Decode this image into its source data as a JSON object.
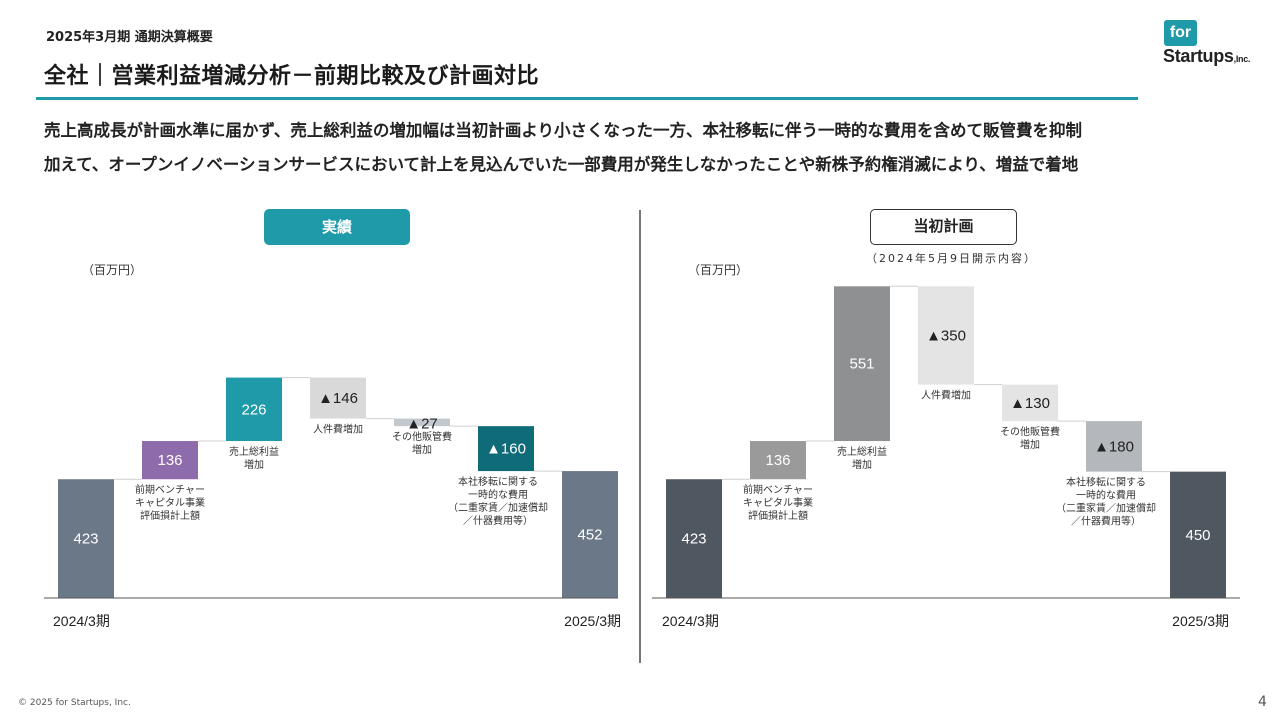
{
  "header": {
    "breadcrumb": "2025年3月期 通期決算概要",
    "title": "全社｜営業利益増減分析－前期比較及び計画対比"
  },
  "logo": {
    "top": "for",
    "main": "Startups",
    "suffix": ",Inc."
  },
  "summary": {
    "line1": "売上高成長が計画水準に届かず、売上総利益の増加幅は当初計画より小さくなった一方、本社移転に伴う一時的な費用を含めて販管費を抑制",
    "line2": "加えて、オープンイノベーションサービスにおいて計上を見込んでいた一部費用が発生しなかったことや新株予約権消滅により、増益で着地"
  },
  "footer": {
    "copyright": "© 2025 for Startups, Inc.",
    "page": "4"
  },
  "colors": {
    "accent": "#1e9aa9",
    "dark_teal": "#0e6b77",
    "purple": "#8e6cab",
    "slate": "#6b7888",
    "charcoal": "#4f5761"
  },
  "chart_data": [
    {
      "type": "bar",
      "title": "実績",
      "unit_label": "（百万円）",
      "x_start": "2024/3期",
      "x_end": "2025/3期",
      "steps": [
        {
          "label": "",
          "value": 423,
          "display": "423",
          "kind": "total",
          "color": "#6b7888",
          "label_color": "#ffffff"
        },
        {
          "label": "前期ベンチャー\nキャピタル事業\n評価損計上額",
          "value": 136,
          "display": "136",
          "kind": "increase",
          "color": "#8e6cab",
          "label_color": "#ffffff"
        },
        {
          "label": "売上総利益\n増加",
          "value": 226,
          "display": "226",
          "kind": "increase",
          "color": "#1e9aa9",
          "label_color": "#ffffff"
        },
        {
          "label": "人件費増加",
          "value": -146,
          "display": "▲146",
          "kind": "decrease",
          "color": "#d9d9d9",
          "label_color": "#222222"
        },
        {
          "label": "その他販管費\n増加",
          "value": -27,
          "display": "▲27",
          "kind": "decrease",
          "color": "#c3c8cd",
          "label_color": "#222222"
        },
        {
          "label": "本社移転に関する\n一時的な費用\n（二重家賃／加速償却\n／什器費用等）",
          "value": -160,
          "display": "▲160",
          "kind": "decrease",
          "color": "#0e6b77",
          "label_color": "#ffffff"
        },
        {
          "label": "",
          "value": 452,
          "display": "452",
          "kind": "total",
          "color": "#6b7888",
          "label_color": "#ffffff"
        }
      ]
    },
    {
      "type": "bar",
      "title": "当初計画",
      "subtitle": "（2024年5月9日開示内容）",
      "unit_label": "（百万円）",
      "x_start": "2024/3期",
      "x_end": "2025/3期",
      "steps": [
        {
          "label": "",
          "value": 423,
          "display": "423",
          "kind": "total",
          "color": "#4f5761",
          "label_color": "#ffffff"
        },
        {
          "label": "前期ベンチャー\nキャピタル事業\n評価損計上額",
          "value": 136,
          "display": "136",
          "kind": "increase",
          "color": "#9a9a9a",
          "label_color": "#ffffff"
        },
        {
          "label": "売上総利益\n増加",
          "value": 551,
          "display": "551",
          "kind": "increase",
          "color": "#8f9092",
          "label_color": "#ffffff"
        },
        {
          "label": "人件費増加",
          "value": -350,
          "display": "▲350",
          "kind": "decrease",
          "color": "#e4e4e4",
          "label_color": "#222222"
        },
        {
          "label": "その他販管費\n増加",
          "value": -130,
          "display": "▲130",
          "kind": "decrease",
          "color": "#e4e4e4",
          "label_color": "#222222"
        },
        {
          "label": "本社移転に関する\n一時的な費用\n（二重家賃／加速償却\n／什器費用等）",
          "value": -180,
          "display": "▲180",
          "kind": "decrease",
          "color": "#b4b8bc",
          "label_color": "#222222"
        },
        {
          "label": "",
          "value": 450,
          "display": "450",
          "kind": "total",
          "color": "#4f5761",
          "label_color": "#ffffff"
        }
      ]
    }
  ]
}
